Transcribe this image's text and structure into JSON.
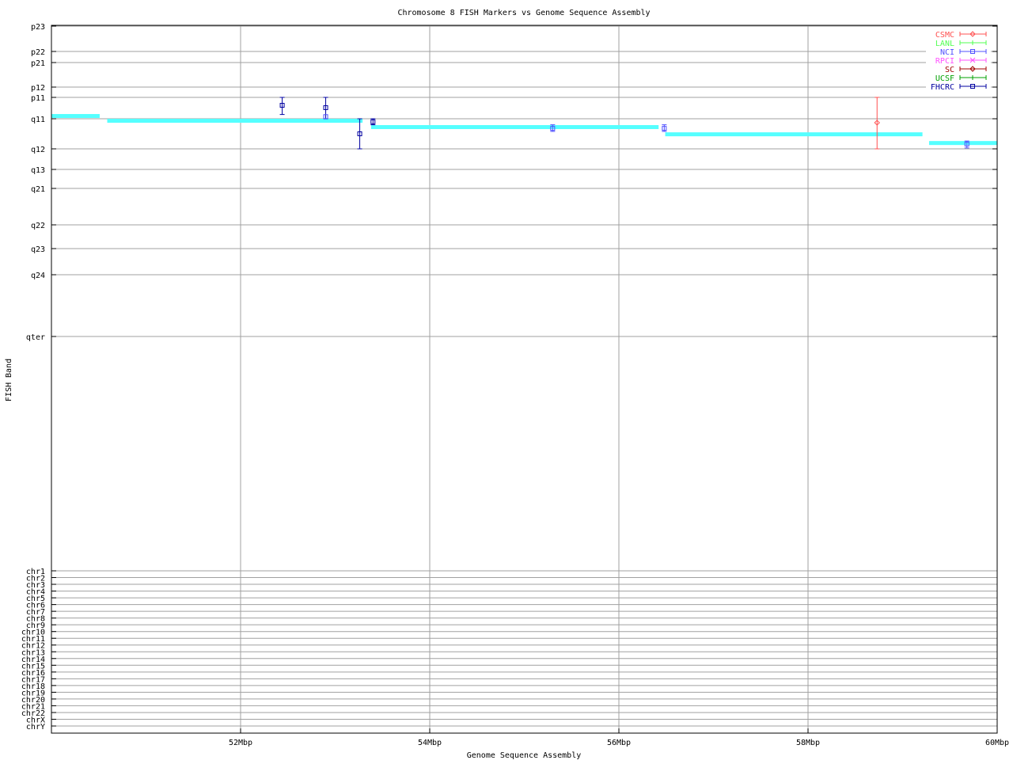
{
  "chart_data": {
    "type": "scatter",
    "title": "Chromosome 8 FISH Markers vs Genome Sequence Assembly",
    "xlabel": "Genome Sequence Assembly",
    "ylabel": "FISH Band",
    "xlim": [
      50,
      60
    ],
    "x_ticks": [
      {
        "value": 52,
        "label": "52Mbp"
      },
      {
        "value": 54,
        "label": "54Mbp"
      },
      {
        "value": 56,
        "label": "56Mbp"
      },
      {
        "value": 58,
        "label": "58Mbp"
      },
      {
        "value": 60,
        "label": "60Mbp"
      }
    ],
    "y_band_ticks": [
      "p23",
      "p22",
      "p21",
      "p12",
      "p11",
      "q11",
      "q12",
      "q13",
      "q21",
      "q22",
      "q23",
      "q24",
      "qter"
    ],
    "y_chr_ticks": [
      "chr1",
      "chr2",
      "chr3",
      "chr4",
      "chr5",
      "chr6",
      "chr7",
      "chr8",
      "chr9",
      "chr10",
      "chr11",
      "chr12",
      "chr13",
      "chr14",
      "chr15",
      "chr16",
      "chr17",
      "chr18",
      "chr19",
      "chr20",
      "chr21",
      "chr22",
      "chrX",
      "chrY"
    ],
    "grid": true,
    "legend_position": "top-right",
    "legend": [
      {
        "name": "CSMC",
        "color": "#ff5050",
        "marker": "diamond"
      },
      {
        "name": "LANL",
        "color": "#50ff50",
        "marker": "plus"
      },
      {
        "name": "NCI",
        "color": "#5050ff",
        "marker": "square"
      },
      {
        "name": "RPCI",
        "color": "#ff50ff",
        "marker": "x"
      },
      {
        "name": "SC",
        "color": "#a00000",
        "marker": "diamond"
      },
      {
        "name": "UCSF",
        "color": "#00a000",
        "marker": "plus"
      },
      {
        "name": "FHCRC",
        "color": "#0000a0",
        "marker": "square"
      }
    ],
    "y_value_note": "y values are band positions indexed along y_band_ticks (0 = p23)",
    "markers": [
      {
        "lab": "FHCRC",
        "x": 52.44,
        "y": 4.37,
        "ylo": 4.0,
        "yhi": 4.8
      },
      {
        "lab": "FHCRC",
        "x": 52.9,
        "y": 4.48,
        "ylo": 4.0,
        "yhi": 5.0
      },
      {
        "lab": "NCI",
        "x": 52.9,
        "y": 4.9,
        "ylo": 4.9,
        "yhi": 4.9
      },
      {
        "lab": "FHCRC",
        "x": 53.26,
        "y": 5.5,
        "ylo": 5.0,
        "yhi": 6.0
      },
      {
        "lab": "FHCRC",
        "x": 53.4,
        "y": 5.1,
        "ylo": 5.0,
        "yhi": 5.2
      },
      {
        "lab": "NCI",
        "x": 55.3,
        "y": 5.32,
        "ylo": 5.2,
        "yhi": 5.42
      },
      {
        "lab": "NCI",
        "x": 56.48,
        "y": 5.32,
        "ylo": 5.2,
        "yhi": 5.42
      },
      {
        "lab": "CSMC",
        "x": 58.73,
        "y": 5.13,
        "ylo": 4.0,
        "yhi": 6.0
      },
      {
        "lab": "NCI",
        "x": 59.68,
        "y": 5.84,
        "ylo": 5.74,
        "yhi": 5.97
      }
    ],
    "assembly_color": "#55ffff",
    "assembly_segments": [
      {
        "x0": 50.0,
        "x1": 50.51,
        "y": 4.89
      },
      {
        "x0": 50.59,
        "x1": 53.29,
        "y": 5.08
      },
      {
        "x0": 53.38,
        "x1": 56.42,
        "y": 5.29
      },
      {
        "x0": 56.49,
        "x1": 59.21,
        "y": 5.53
      },
      {
        "x0": 59.28,
        "x1": 60.0,
        "y": 5.82
      }
    ]
  }
}
